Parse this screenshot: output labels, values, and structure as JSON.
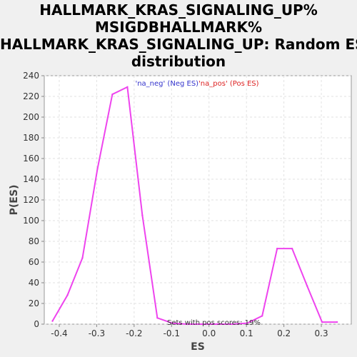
{
  "chart_data": {
    "type": "line",
    "title_lines": [
      "HALLMARK_KRAS_SIGNALING_UP%",
      "MSIGDBHALLMARK%",
      "HALLMARK_KRAS_SIGNALING_UP: Random ES",
      "distribution"
    ],
    "xlabel": "ES",
    "ylabel": "P(ES)",
    "xlim": [
      -0.44,
      0.38
    ],
    "ylim": [
      0,
      240
    ],
    "x_ticks": [
      -0.4,
      -0.3,
      -0.2,
      -0.1,
      0.0,
      0.1,
      0.2,
      0.3
    ],
    "x_tick_labels": [
      "-0.4",
      "-0.3",
      "-0.2",
      "-0.1",
      "0.0",
      "0.1",
      "0.2",
      "0.3"
    ],
    "y_ticks": [
      0,
      20,
      40,
      60,
      80,
      100,
      120,
      140,
      160,
      180,
      200,
      220,
      240
    ],
    "grid": true,
    "legend": [
      {
        "label": "'na_neg' (Neg ES)",
        "color": "#3333cc"
      },
      {
        "label": "'na_pos' (Pos ES)",
        "color": "#dd2222"
      }
    ],
    "annotation": "Sets with pos scores: 19%",
    "series": [
      {
        "color": "#ee44ee",
        "x": [
          -0.418,
          -0.378,
          -0.338,
          -0.298,
          -0.258,
          -0.218,
          -0.178,
          -0.138,
          -0.098,
          -0.058,
          -0.018,
          0.022,
          0.062,
          0.102,
          0.142,
          0.182,
          0.222,
          0.262,
          0.302,
          0.342
        ],
        "y": [
          3,
          28,
          64,
          150,
          222,
          229,
          105,
          6,
          1,
          0,
          0,
          0,
          0,
          1,
          8,
          73,
          73,
          37,
          2,
          2
        ]
      }
    ]
  }
}
